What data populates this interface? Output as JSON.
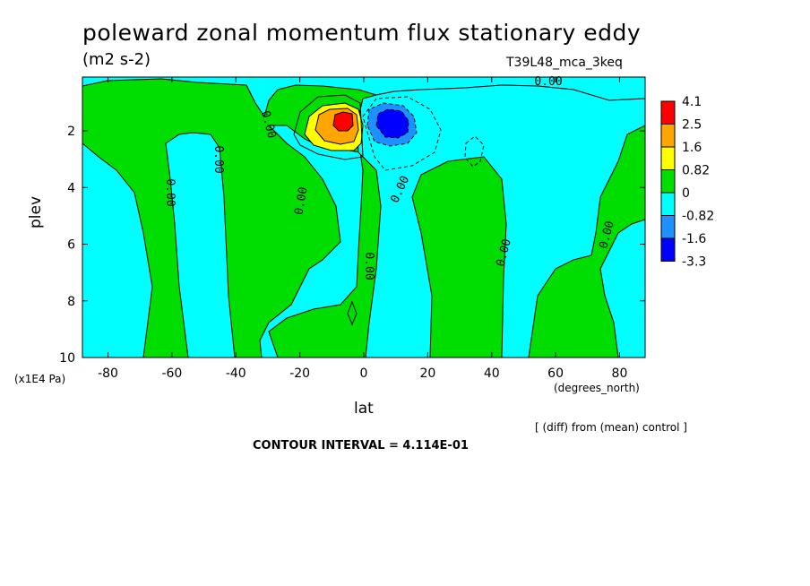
{
  "title": "poleward zonal momentum flux stationary eddy",
  "units": "(m2 s-2)",
  "run_id": "T39L48_mca_3keq",
  "footer": {
    "diff_note": "[ (diff) from (mean) control ]",
    "contour_interval": "CONTOUR INTERVAL = 4.114E-01"
  },
  "chart_data": {
    "type": "heatmap",
    "title": "poleward zonal momentum flux stationary eddy",
    "xlabel": "lat",
    "x_units": "(degrees_north)",
    "ylabel": "plev",
    "y_units": "(x1E4 Pa)",
    "xlim": [
      -88,
      88
    ],
    "ylim": [
      10,
      0.1
    ],
    "y_inverted": true,
    "x_ticks": [
      -80,
      -60,
      -40,
      -20,
      0,
      20,
      40,
      60,
      80
    ],
    "y_ticks": [
      2,
      4,
      6,
      8,
      10
    ],
    "colorbar": {
      "labels": [
        "4.1",
        "2.5",
        "1.6",
        "0.82",
        "0",
        "-0.82",
        "-1.6",
        "-3.3"
      ],
      "colors": [
        "#ff0000",
        "#ffa500",
        "#ffff00",
        "#00dd00",
        "#00ffff",
        "#1e90ff",
        "#0000ff"
      ]
    },
    "contour_labels": [
      "0.00",
      "0.00",
      "0.00",
      "0.00",
      "0.00",
      "0.00",
      "0.00",
      "0.00",
      "0.00",
      "0.00"
    ],
    "features": [
      {
        "kind": "max",
        "lat": -7,
        "plev": 1.7,
        "level": 4.1
      },
      {
        "kind": "min",
        "lat": 8,
        "plev": 1.8,
        "level": -3.3
      }
    ]
  }
}
